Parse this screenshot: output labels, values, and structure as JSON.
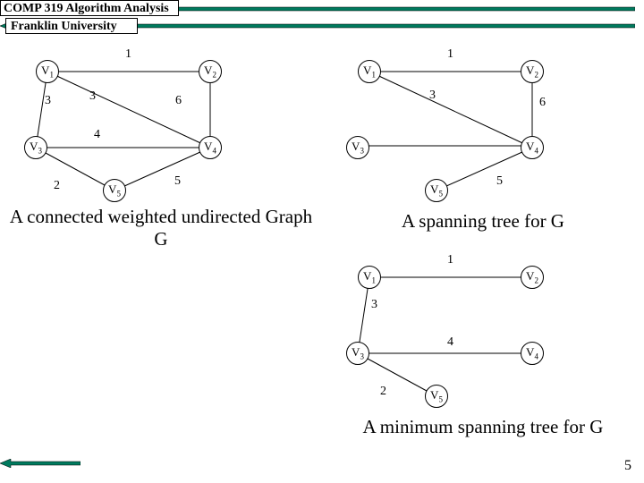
{
  "header": {
    "course": "COMP 319 Algorithm Analysis",
    "institution": "Franklin University"
  },
  "page_number": "5",
  "colors": {
    "arrow_fill": "#007a5e",
    "arrow_stroke": "#000000",
    "edge_stroke": "#000000",
    "node_fill": "#ffffff",
    "node_stroke": "#000000"
  },
  "captions": {
    "g1": "A connected weighted undirected Graph G",
    "g2": "A spanning tree for G",
    "g3": "A minimum spanning tree for G"
  },
  "graphs": {
    "g1": {
      "nodes": {
        "v1": "V1",
        "v2": "V2",
        "v3": "V3",
        "v4": "V4",
        "v5": "V5"
      },
      "weights": {
        "w_v1v2": "1",
        "w_v1v3": "3",
        "w_v1v4": "3",
        "w_v2v4": "6",
        "w_v3v4": "4",
        "w_v3v5": "2",
        "w_v4v5": "5"
      }
    },
    "g2": {
      "nodes": {
        "v1": "V1",
        "v2": "V2",
        "v3": "V3",
        "v4": "V4",
        "v5": "V5"
      },
      "weights": {
        "w_v1v2": "1",
        "w_v1v4": "3",
        "w_v2v4": "6",
        "w_v4v5": "5"
      }
    },
    "g3": {
      "nodes": {
        "v1": "V1",
        "v2": "V2",
        "v3": "V3",
        "v4": "V4",
        "v5": "V5"
      },
      "weights": {
        "w_v1v2": "1",
        "w_v1v3": "3",
        "w_v3v4": "4",
        "w_v3v5": "2"
      }
    }
  }
}
